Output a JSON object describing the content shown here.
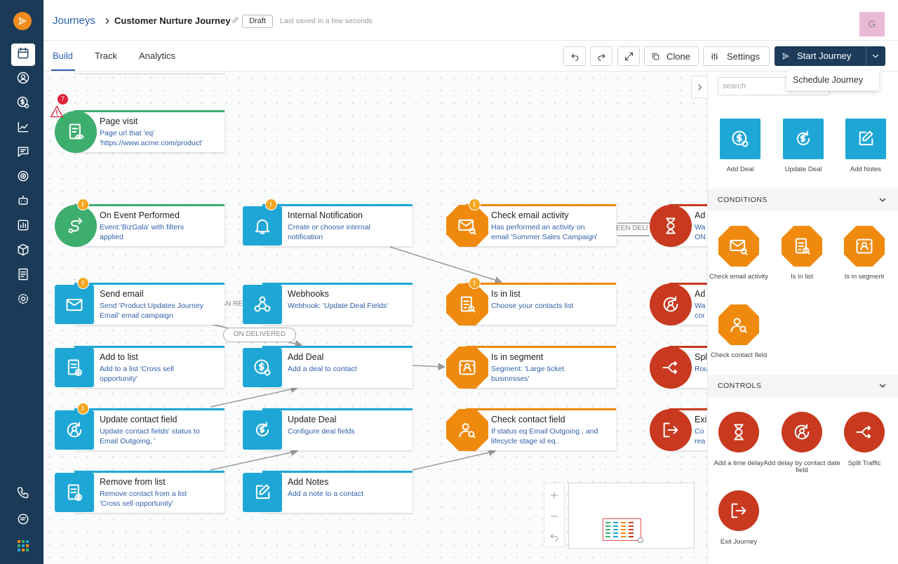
{
  "header": {
    "breadcrumb": "Journeys",
    "title": "Customer Nurture Journey",
    "status": "Draft",
    "saved": "Last saved in a few seconds",
    "avatar": "G"
  },
  "tabs": [
    "Build",
    "Track",
    "Analytics"
  ],
  "toolbar": {
    "clone": "Clone",
    "settings": "Settings",
    "start": "Start Journey",
    "schedule": "Schedule Journey"
  },
  "alert_count": 7,
  "nodes": [
    {
      "title": "Page visit",
      "desc": [
        "Page url that 'eq'",
        "'https://www.acme.com/product'"
      ]
    },
    {
      "title": "On Event Performed",
      "desc": [
        "Event:'BizGala' with filters",
        "applied"
      ]
    },
    {
      "title": "Send email",
      "desc": [
        "Send 'Product Updates Journey",
        "Email' email campaign"
      ]
    },
    {
      "title": "Add to list",
      "desc": [
        "Add to a list 'Cross sell",
        "opportunity'"
      ]
    },
    {
      "title": "Update contact field",
      "desc": [
        "Update contact fields' status to",
        "Email Outgoing, '"
      ]
    },
    {
      "title": "Remove from list",
      "desc": [
        "Remove contact from a list",
        "'Cross sell opportunity'"
      ]
    },
    {
      "title": "Internal Notification",
      "desc": [
        "Create or choose internal",
        "notification"
      ]
    },
    {
      "title": "Webhooks",
      "desc": [
        "Webhook: 'Update Deal Fields'"
      ]
    },
    {
      "title": "Add Deal",
      "desc": [
        "Add a deal to contact"
      ]
    },
    {
      "title": "Update Deal",
      "desc": [
        "Configure deal fields"
      ]
    },
    {
      "title": "Add Notes",
      "desc": [
        "Add a note to a contact"
      ]
    },
    {
      "title": "Check email activity",
      "desc": [
        "Has performed an activity on",
        "email 'Summer Sales Campaign'"
      ]
    },
    {
      "title": "Is in list",
      "desc": [
        "Choose your contacts list"
      ]
    },
    {
      "title": "Is in segment",
      "desc": [
        "Segment: 'Large ticket",
        "businesses'"
      ]
    },
    {
      "title": "Check contact field",
      "desc": [
        "If status eq Email Outgoing , and",
        "lifecycle stage id eq.."
      ]
    },
    {
      "title": "Ad",
      "desc": [
        "Wa",
        "ON"
      ]
    },
    {
      "title": "Ad",
      "desc": [
        "Wa",
        "cor"
      ]
    },
    {
      "title": "Spl",
      "desc": [
        "Rou"
      ]
    },
    {
      "title": "Exi",
      "desc": [
        "Co",
        "rea"
      ]
    }
  ],
  "edge_labels": [
    "ON DELIVERED",
    "EEN DELI",
    "N REP"
  ],
  "panel": {
    "search": "search",
    "actions": [
      "Add Deal",
      "Update Deal",
      "Add Notes"
    ],
    "conditions_title": "CONDITIONS",
    "conditions": [
      "Check email activity",
      "Is in list",
      "Is in segment",
      "Check contact field"
    ],
    "controls_title": "CONTROLS",
    "controls": [
      "Add a time delay",
      "Add delay by contact date field",
      "Split Traffic",
      "Exit Journey"
    ]
  }
}
